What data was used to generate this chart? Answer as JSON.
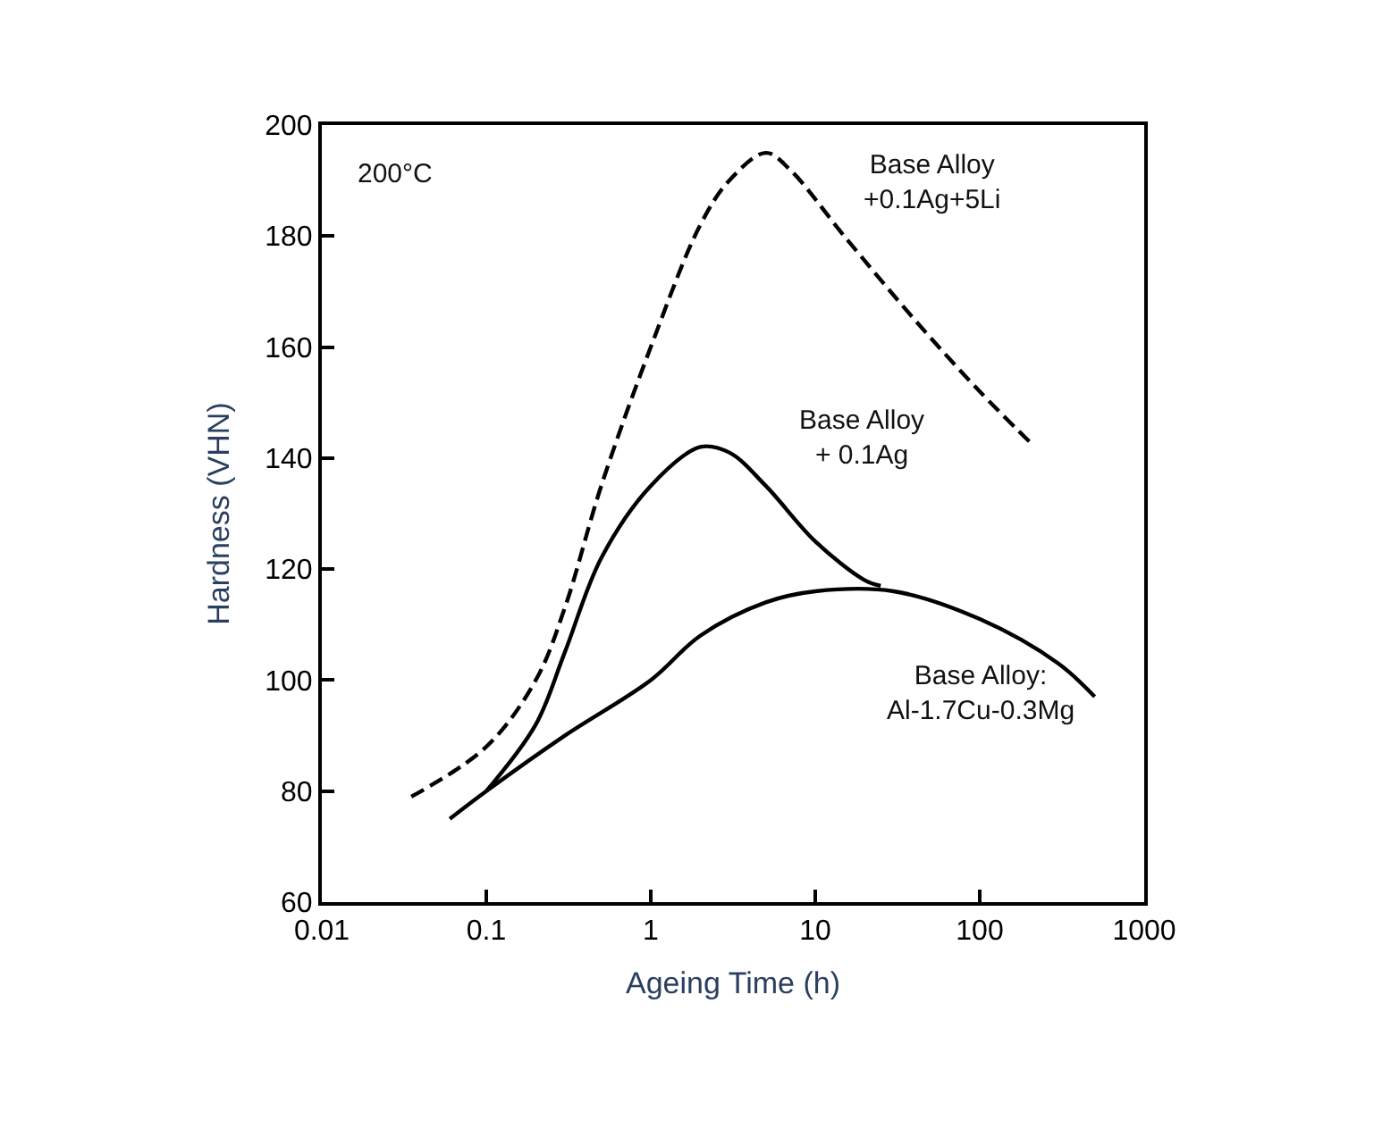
{
  "chart_data": {
    "type": "line",
    "xlabel": "Ageing Time (h)",
    "ylabel": "Hardness (VHN)",
    "log": "x",
    "xlim": [
      0.01,
      1000
    ],
    "xticks": [
      0.01,
      0.1,
      1,
      10,
      100,
      1000
    ],
    "ylim": [
      60,
      200
    ],
    "yticks": [
      60,
      80,
      100,
      120,
      140,
      160,
      180,
      200
    ],
    "legend": false,
    "marker": "none",
    "annotations": [
      "200°C"
    ],
    "series": [
      {
        "name": "Base Alloy\n+0.1Ag+5Li",
        "color": "#000000",
        "line_style": "dashed",
        "x": [
          0.035,
          0.1,
          0.2,
          0.3,
          0.5,
          1,
          2,
          3,
          5,
          7,
          15,
          40,
          100,
          200
        ],
        "values": [
          79,
          88,
          100,
          113,
          135,
          160,
          182,
          190,
          195,
          192,
          180,
          165,
          152,
          143
        ]
      },
      {
        "name": "Base Alloy\n+ 0.1Ag",
        "color": "#000000",
        "line_style": "solid",
        "x": [
          0.1,
          0.2,
          0.3,
          0.5,
          1,
          2,
          3,
          5,
          10,
          20,
          25
        ],
        "values": [
          80,
          92,
          105,
          122,
          135,
          142,
          141,
          135,
          125,
          118,
          117
        ]
      },
      {
        "name": "Base Alloy:\nAl-1.7Cu-0.3Mg",
        "color": "#000000",
        "line_style": "solid",
        "x": [
          0.06,
          0.1,
          0.3,
          1,
          2,
          5,
          10,
          30,
          100,
          300,
          500
        ],
        "values": [
          75,
          80,
          90,
          100,
          108,
          114,
          116,
          116,
          111,
          103,
          97
        ]
      }
    ]
  }
}
